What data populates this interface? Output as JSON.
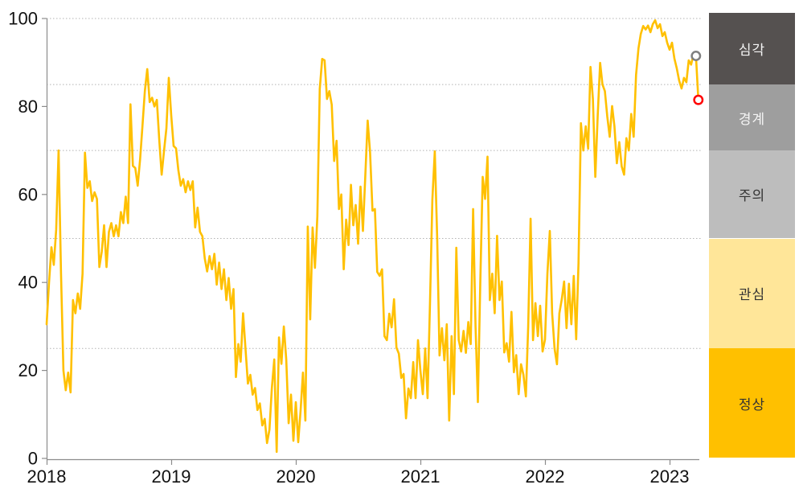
{
  "chart_data": {
    "type": "line",
    "title": "",
    "x_tick_labels": [
      "2018",
      "2019",
      "2020",
      "2021",
      "2022",
      "2023"
    ],
    "y_ticks": [
      0,
      20,
      40,
      60,
      80,
      100
    ],
    "ylim": [
      0,
      100
    ],
    "gridlines_y": [
      25,
      50,
      70,
      85,
      100
    ],
    "points_per_year": 52,
    "legend_position": "right",
    "grid": "dotted-horizontal",
    "colors": {
      "line": "#FFC000",
      "axis": "#8C8C8C",
      "gridline": "#B3B3B3",
      "tick_label": "#111111",
      "marker_fill": "#FFFFFF"
    },
    "series": [
      {
        "name": "weekly-risk-index",
        "color": "#FFC000",
        "values": [
          30.5,
          40,
          48,
          44,
          52,
          70,
          42,
          20,
          15.5,
          19.5,
          15,
          36,
          33,
          37.5,
          34,
          42,
          69.5,
          61.5,
          63,
          58.5,
          60.5,
          59,
          43.5,
          47,
          53,
          43.5,
          51.5,
          53.5,
          50.5,
          53,
          50.5,
          56,
          53.5,
          59.5,
          53.5,
          80.5,
          66.5,
          66,
          62,
          68,
          75.5,
          83.5,
          88.5,
          81,
          82,
          80,
          81.5,
          72.5,
          64.5,
          70,
          75,
          86.5,
          78,
          71,
          70.5,
          65.5,
          62,
          63.5,
          60.5,
          63,
          61,
          63,
          52.5,
          57,
          51.5,
          50.5,
          45.5,
          42.5,
          46,
          43,
          46.5,
          39.5,
          44.5,
          38.5,
          43,
          36,
          41,
          34,
          38.5,
          18.5,
          26,
          22,
          33,
          25,
          17,
          19,
          14.5,
          16,
          11,
          12.5,
          7.5,
          9,
          3.5,
          6.5,
          16,
          22.5,
          1.5,
          27.5,
          21.5,
          30,
          22.5,
          8,
          14.5,
          4,
          12.8,
          3.7,
          11,
          19.5,
          8.6,
          52.7,
          31.6,
          52.5,
          43.3,
          55,
          84,
          90.8,
          90.5,
          81.7,
          83.5,
          80.4,
          67.6,
          72.2,
          56.7,
          60,
          43,
          54.3,
          48.5,
          62.2,
          53,
          57.6,
          48.8,
          61.8,
          51.7,
          64,
          76.8,
          69.5,
          56.3,
          56.7,
          42.4,
          41.5,
          43,
          27.8,
          26.9,
          32.9,
          29.8,
          36.2,
          25.2,
          23.8,
          18.3,
          19.2,
          9.1,
          15.9,
          13.7,
          21.9,
          13.7,
          26.9,
          20,
          14.6,
          25,
          13.7,
          35,
          58.9,
          69.8,
          50,
          23.4,
          29.6,
          22.3,
          30.5,
          8.6,
          27.8,
          14.6,
          47.9,
          26.9,
          24.3,
          29,
          24,
          31,
          26,
          56.7,
          30,
          12.8,
          40,
          64,
          59,
          68.6,
          36,
          42,
          33,
          50.6,
          36,
          40.2,
          24.1,
          26.2,
          22,
          33.3,
          19.6,
          23.5,
          14.6,
          21.4,
          19,
          14.1,
          30,
          54.5,
          26.9,
          35.3,
          27.8,
          34.7,
          24.3,
          27,
          42,
          51.7,
          33,
          25,
          21.4,
          33,
          36.2,
          40.2,
          29.6,
          39.7,
          30.5,
          41.5,
          27.1,
          44.4,
          76.2,
          70,
          75.5,
          70.4,
          89,
          81.7,
          64,
          78,
          89.9,
          85,
          83.5,
          77.7,
          73.1,
          80.1,
          75.5,
          67.1,
          71.9,
          66.4,
          64.5,
          72.8,
          70,
          78.3,
          73.1,
          87.2,
          93.2,
          96.5,
          98.3,
          97.5,
          98.4,
          96.9,
          98.7,
          99.6,
          97.8,
          98.7,
          96,
          96.9,
          94.5,
          92.9,
          94.5,
          90.9,
          88.7,
          85.9,
          84.1,
          86.5,
          85.5,
          90.5,
          89.5,
          92,
          91.5,
          81.5
        ]
      }
    ],
    "end_markers": [
      {
        "name": "previous-point-marker",
        "color": "#7F7F7F",
        "index_from_end": 1,
        "value": 91.5
      },
      {
        "name": "latest-point-marker",
        "color": "#FF0000",
        "index_from_end": 0,
        "value": 81.5
      }
    ],
    "legend_bands": [
      {
        "label": "심각",
        "min": 85,
        "max": 101.3,
        "color": "#555150",
        "text_color": "#F5F5F5"
      },
      {
        "label": "경계",
        "min": 70,
        "max": 85,
        "color": "#9E9E9E",
        "text_color": "#F5F5F5"
      },
      {
        "label": "주의",
        "min": 50,
        "max": 70,
        "color": "#BDBDBD",
        "text_color": "#333333"
      },
      {
        "label": "관심",
        "min": 25,
        "max": 50,
        "color": "#FFE699",
        "text_color": "#333333"
      },
      {
        "label": "정상",
        "min": 0.2,
        "max": 25,
        "color": "#FFC000",
        "text_color": "#333333"
      }
    ]
  }
}
